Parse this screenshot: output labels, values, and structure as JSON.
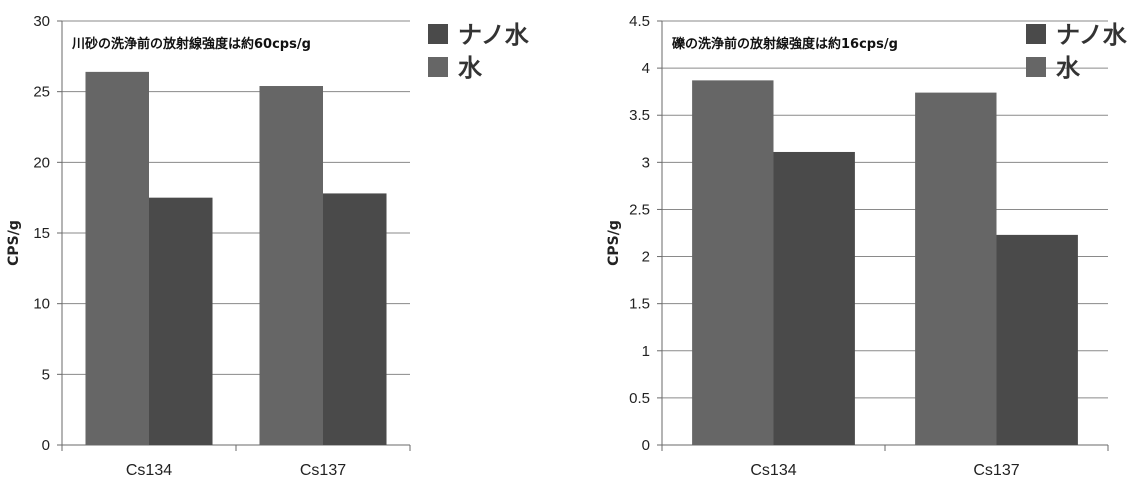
{
  "chart_data": [
    {
      "type": "bar",
      "annotation": "川砂の洗浄前の放射線強度は約60cps/g",
      "ylabel": "CPS/g",
      "categories": [
        "Cs134",
        "Cs137"
      ],
      "ylim": [
        0,
        30
      ],
      "yticks": [
        0,
        5,
        10,
        15,
        20,
        25,
        30
      ],
      "ytick_labels": [
        "0",
        "5",
        "10",
        "15",
        "20",
        "25",
        "30"
      ],
      "legend_position": "top-right",
      "grid": true,
      "series": [
        {
          "name": "水",
          "values": [
            26.4,
            25.4
          ],
          "color": "#666666"
        },
        {
          "name": "ナノ水",
          "values": [
            17.5,
            17.8
          ],
          "color": "#4a4a4a"
        }
      ],
      "legend_order": [
        "ナノ水",
        "水"
      ]
    },
    {
      "type": "bar",
      "annotation": "礫の洗浄前の放射線強度は約16cps/g",
      "ylabel": "CPS/g",
      "categories": [
        "Cs134",
        "Cs137"
      ],
      "ylim": [
        0,
        4.5
      ],
      "yticks": [
        0,
        0.5,
        1,
        1.5,
        2,
        2.5,
        3,
        3.5,
        4,
        4.5
      ],
      "ytick_labels": [
        "0",
        "0.5",
        "1",
        "1.5",
        "2",
        "2.5",
        "3",
        "3.5",
        "4",
        "4.5"
      ],
      "legend_position": "top-right",
      "grid": true,
      "series": [
        {
          "name": "水",
          "values": [
            3.87,
            3.74
          ],
          "color": "#666666"
        },
        {
          "name": "ナノ水",
          "values": [
            3.11,
            2.23
          ],
          "color": "#4a4a4a"
        }
      ],
      "legend_order": [
        "ナノ水",
        "水"
      ]
    }
  ]
}
